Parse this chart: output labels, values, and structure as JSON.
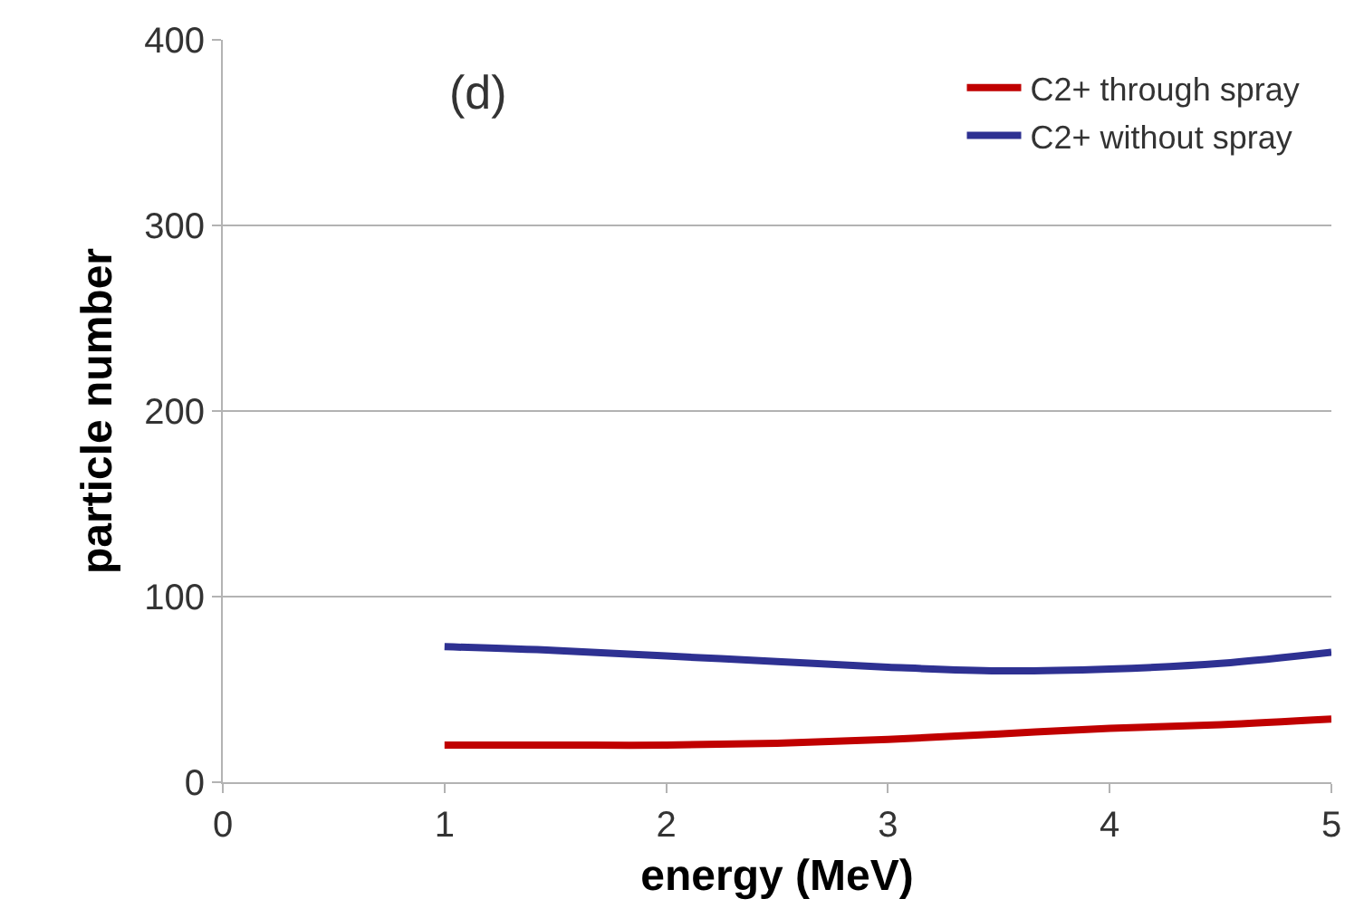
{
  "chart_data": {
    "type": "line",
    "xlabel": "energy (MeV)",
    "ylabel": "particle number",
    "annotations": [
      "(d)"
    ],
    "x": [
      1,
      1.5,
      2,
      2.5,
      3,
      3.5,
      4,
      4.5,
      5
    ],
    "series": [
      {
        "name": "C2+ through spray",
        "color": "#c00000",
        "values": [
          20,
          20,
          20,
          21,
          23,
          26,
          29,
          31,
          34
        ]
      },
      {
        "name": "C2+ without spray",
        "color": "#2e3192",
        "values": [
          73,
          71,
          68,
          65,
          62,
          60,
          61,
          64,
          70
        ]
      }
    ],
    "xlim": [
      0,
      5
    ],
    "xticks": [
      0,
      1,
      2,
      3,
      4,
      5
    ],
    "ylim": [
      0,
      400
    ],
    "yticks": [
      0,
      100,
      200,
      300,
      400
    ],
    "grid": "y",
    "legend": "top right",
    "marker": "none",
    "line_style": "solid"
  }
}
